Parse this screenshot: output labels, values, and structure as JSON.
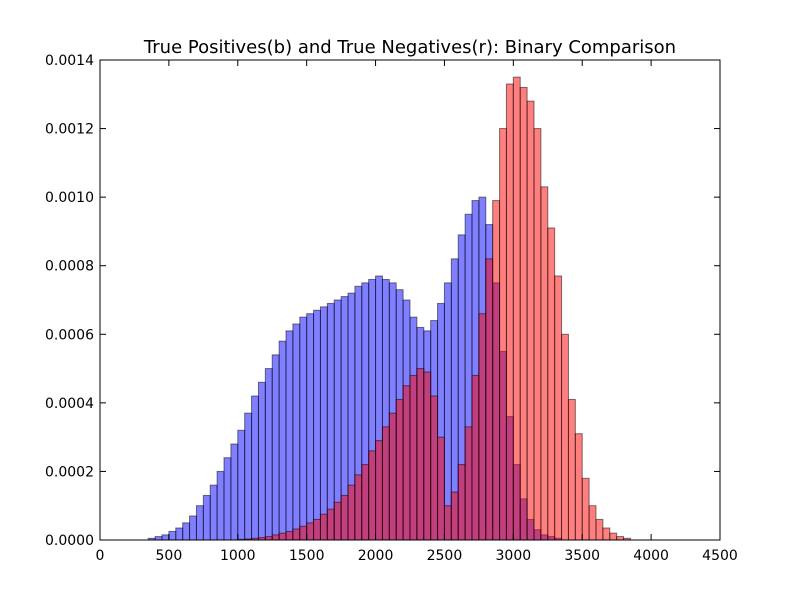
{
  "chart_data": {
    "type": "bar",
    "title": "True Positives(b) and True Negatives(r): Binary Comparison",
    "xlabel": "",
    "ylabel": "",
    "xlim": [
      0,
      4500
    ],
    "ylim": [
      0,
      0.0014
    ],
    "grid": false,
    "x_ticks": [
      "0",
      "500",
      "1000",
      "1500",
      "2000",
      "2500",
      "3000",
      "3500",
      "4000",
      "4500"
    ],
    "y_ticks": [
      "0.0000",
      "0.0002",
      "0.0004",
      "0.0006",
      "0.0008",
      "0.0010",
      "0.0012",
      "0.0014"
    ],
    "series": [
      {
        "color": "#0000ff",
        "opacity": 0.5,
        "bin_start": 350,
        "bin_width": 50,
        "values": [
          5e-06,
          1e-05,
          1.5e-05,
          2.5e-05,
          3.5e-05,
          5e-05,
          7e-05,
          0.0001,
          0.00013,
          0.00016,
          0.0002,
          0.00024,
          0.00028,
          0.00032,
          0.00037,
          0.00042,
          0.00046,
          0.0005,
          0.00054,
          0.00058,
          0.00061,
          0.00063,
          0.00065,
          0.00066,
          0.00067,
          0.00068,
          0.00069,
          0.0007,
          0.00071,
          0.00072,
          0.00074,
          0.00075,
          0.00076,
          0.00077,
          0.00076,
          0.00075,
          0.00073,
          0.0007,
          0.00065,
          0.00062,
          0.00061,
          0.00064,
          0.00069,
          0.00075,
          0.00082,
          0.00089,
          0.00095,
          0.00099,
          0.001,
          0.00092,
          0.00075,
          0.00055,
          0.00036,
          0.00022,
          0.00012,
          6e-05,
          3e-05,
          1.5e-05,
          1e-05,
          5e-06
        ]
      },
      {
        "color": "#ff0000",
        "opacity": 0.5,
        "bin_start": 1000,
        "bin_width": 50,
        "values": [
          2e-06,
          3e-06,
          5e-06,
          7e-06,
          1e-05,
          1.5e-05,
          2e-05,
          2.5e-05,
          3.2e-05,
          4e-05,
          5e-05,
          6e-05,
          7.5e-05,
          9e-05,
          0.00011,
          0.00013,
          0.00016,
          0.00019,
          0.00022,
          0.00026,
          0.00029,
          0.00033,
          0.00037,
          0.00041,
          0.00045,
          0.00048,
          0.0005,
          0.00049,
          0.00042,
          0.0003,
          0.0001,
          0.00014,
          0.00022,
          0.00033,
          0.00048,
          0.00066,
          0.00082,
          0.00099,
          0.0012,
          0.00133,
          0.00135,
          0.00132,
          0.00128,
          0.0012,
          0.00103,
          0.00091,
          0.00077,
          0.0006,
          0.00041,
          0.00031,
          0.00018,
          0.0001,
          6e-05,
          3.5e-05,
          2e-05,
          1e-05,
          5e-06
        ]
      }
    ]
  }
}
